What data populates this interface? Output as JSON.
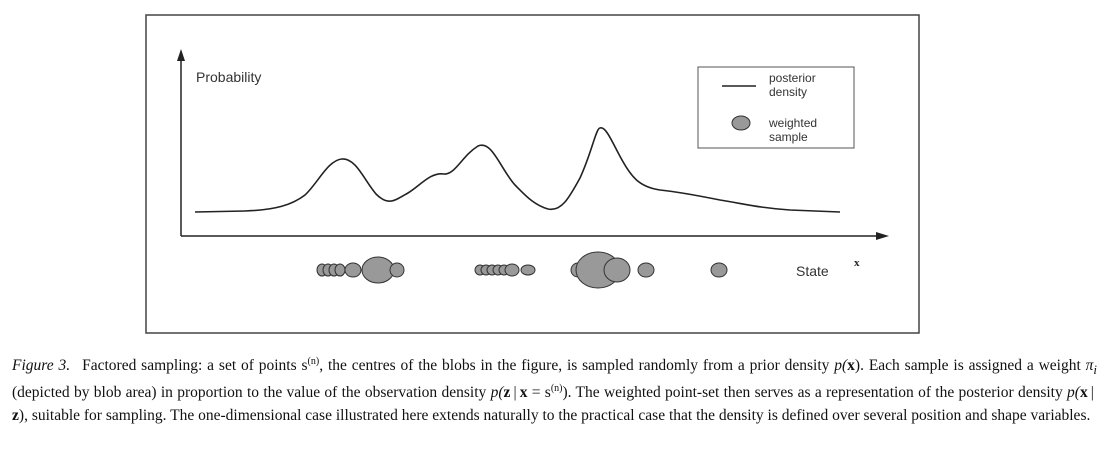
{
  "figure": {
    "y_axis_label": "Probability",
    "x_axis_label": "State",
    "x_axis_symbol": "x",
    "legend": {
      "line_label_1": "posterior",
      "line_label_2": "density",
      "blob_label_1": "weighted",
      "blob_label_2": "sample"
    },
    "colors": {
      "curve": "#222222",
      "blob_fill": "#999999",
      "blob_stroke": "#333333",
      "frame": "#444444"
    }
  },
  "caption": {
    "label": "Figure 3.",
    "seg1": "Factored sampling: a set of points s",
    "seg2": ", the centres of the blobs in the figure, is sampled randomly from a prior density ",
    "seg3": ". Each sample is assigned a weight ",
    "seg4": " (depicted by blob area) in proportion to the value of the observation density ",
    "seg5": ". The weighted point-set then serves as a representation of the posterior density ",
    "seg6": ", suitable for sampling. The one-dimensional case illustrated here extends naturally to the practical case that the density is defined over several position and shape variables.",
    "sup_n": "(n)",
    "pi_i": "π",
    "pi_sub": "i",
    "p_x": "p(",
    "p_z_x": "p(",
    "p_x_z": "p("
  }
}
